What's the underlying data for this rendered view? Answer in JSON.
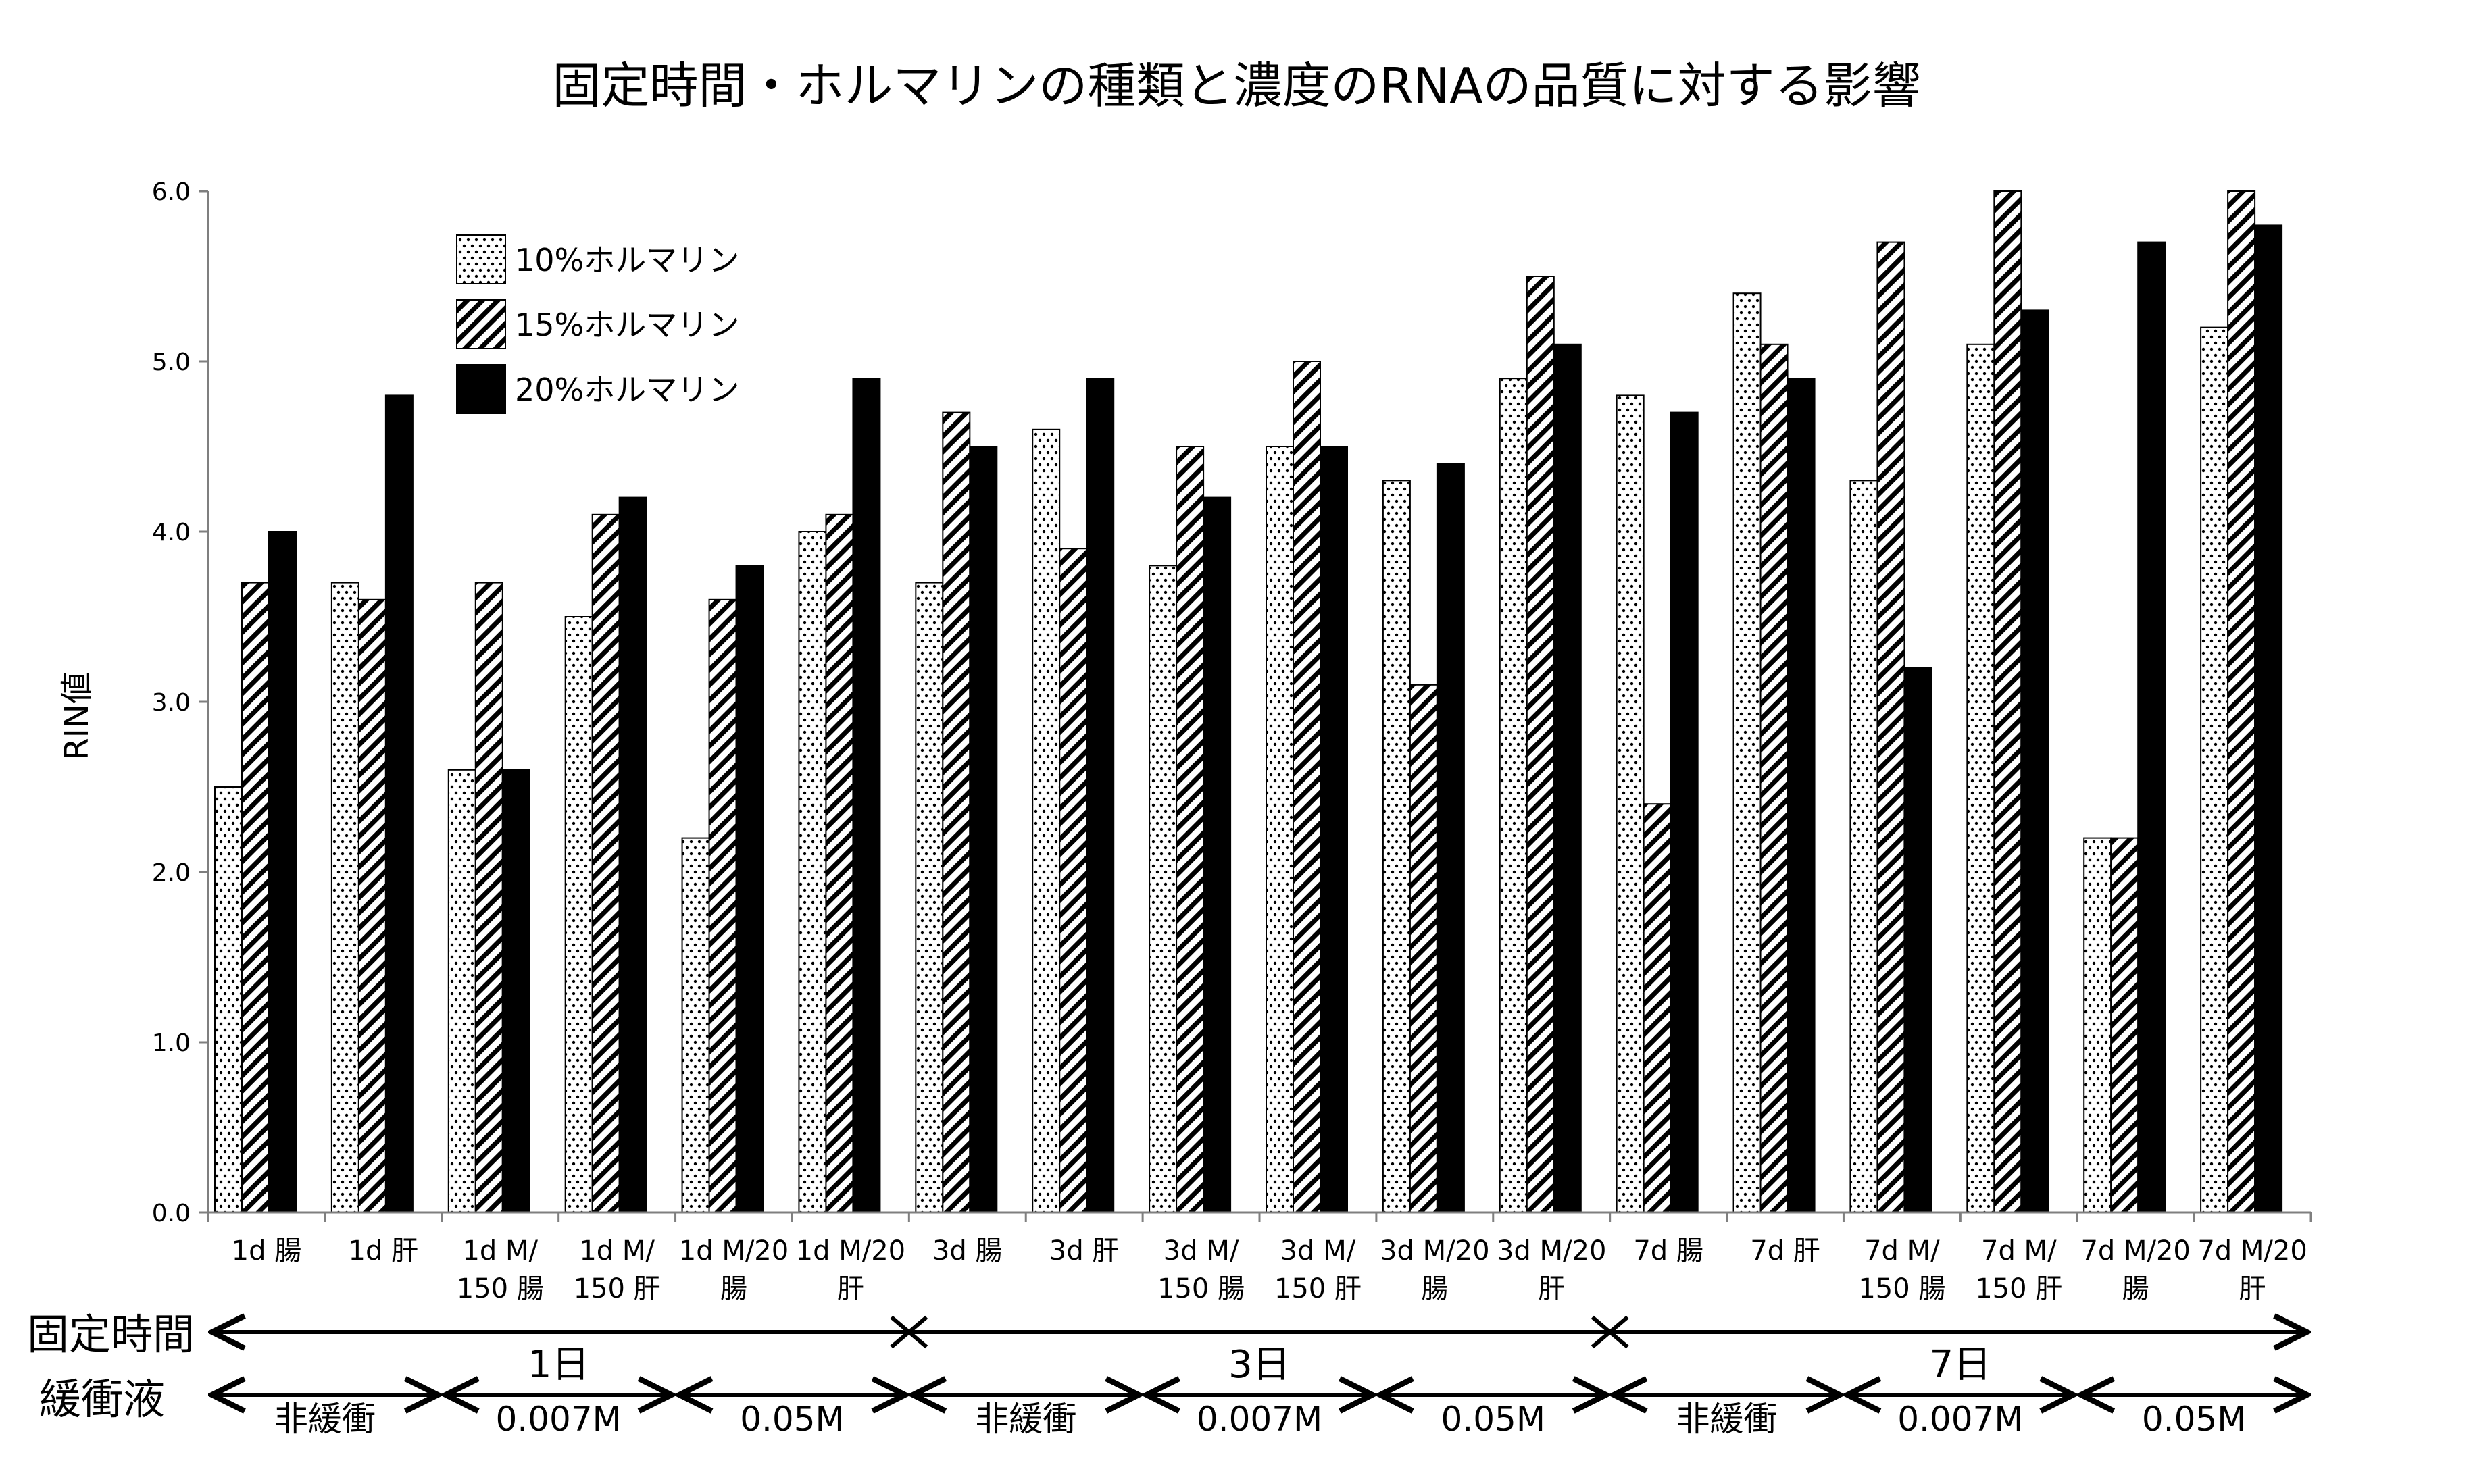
{
  "chart_data": {
    "type": "bar",
    "title": "固定時間・ホルマリンの種類と濃度のRNAの品質に対する影響",
    "ylabel": "RIN値",
    "xlabel": "",
    "ylim": [
      0,
      6
    ],
    "yticks": [
      "0.0",
      "1.0",
      "2.0",
      "3.0",
      "4.0",
      "5.0",
      "6.0"
    ],
    "grid": false,
    "legend_position": "top-left",
    "categories": [
      [
        "1d 腸"
      ],
      [
        "1d 肝"
      ],
      [
        "1d M/",
        "150 腸"
      ],
      [
        "1d M/",
        "150 肝"
      ],
      [
        "1d M/20",
        "腸"
      ],
      [
        "1d M/20",
        "肝"
      ],
      [
        "3d 腸"
      ],
      [
        "3d 肝"
      ],
      [
        "3d M/",
        "150 腸"
      ],
      [
        "3d M/",
        "150 肝"
      ],
      [
        "3d M/20",
        "腸"
      ],
      [
        "3d M/20",
        "肝"
      ],
      [
        "7d 腸"
      ],
      [
        "7d 肝"
      ],
      [
        "7d M/",
        "150 腸"
      ],
      [
        "7d M/",
        "150 肝"
      ],
      [
        "7d M/20",
        "腸"
      ],
      [
        "7d M/20",
        "肝"
      ]
    ],
    "series": [
      {
        "name": "10%ホルマリン",
        "pattern": "dots",
        "values": [
          2.5,
          3.7,
          2.6,
          3.5,
          2.2,
          4.0,
          3.7,
          4.6,
          3.8,
          4.5,
          4.3,
          4.9,
          4.8,
          5.4,
          4.3,
          5.1,
          2.2,
          5.2
        ]
      },
      {
        "name": "15%ホルマリン",
        "pattern": "hatch",
        "values": [
          3.7,
          3.6,
          3.7,
          4.1,
          3.6,
          4.1,
          4.7,
          3.9,
          4.5,
          5.0,
          3.1,
          5.5,
          2.4,
          5.1,
          5.7,
          6.0,
          2.2,
          6.0
        ]
      },
      {
        "name": "20%ホルマリン",
        "pattern": "solid",
        "values": [
          4.0,
          4.8,
          2.6,
          4.2,
          3.8,
          4.9,
          4.5,
          4.9,
          4.2,
          4.5,
          4.4,
          5.1,
          4.7,
          4.9,
          3.2,
          5.3,
          5.7,
          5.8
        ]
      }
    ],
    "fixation_row": {
      "label": "固定時間",
      "periods": [
        "1日",
        "3日",
        "7日"
      ]
    },
    "buffer_row": {
      "label": "緩衝液",
      "segments": [
        "非緩衝",
        "0.007M",
        "0.05M",
        "非緩衝",
        "0.007M",
        "0.05M",
        "非緩衝",
        "0.007M",
        "0.05M"
      ]
    }
  }
}
